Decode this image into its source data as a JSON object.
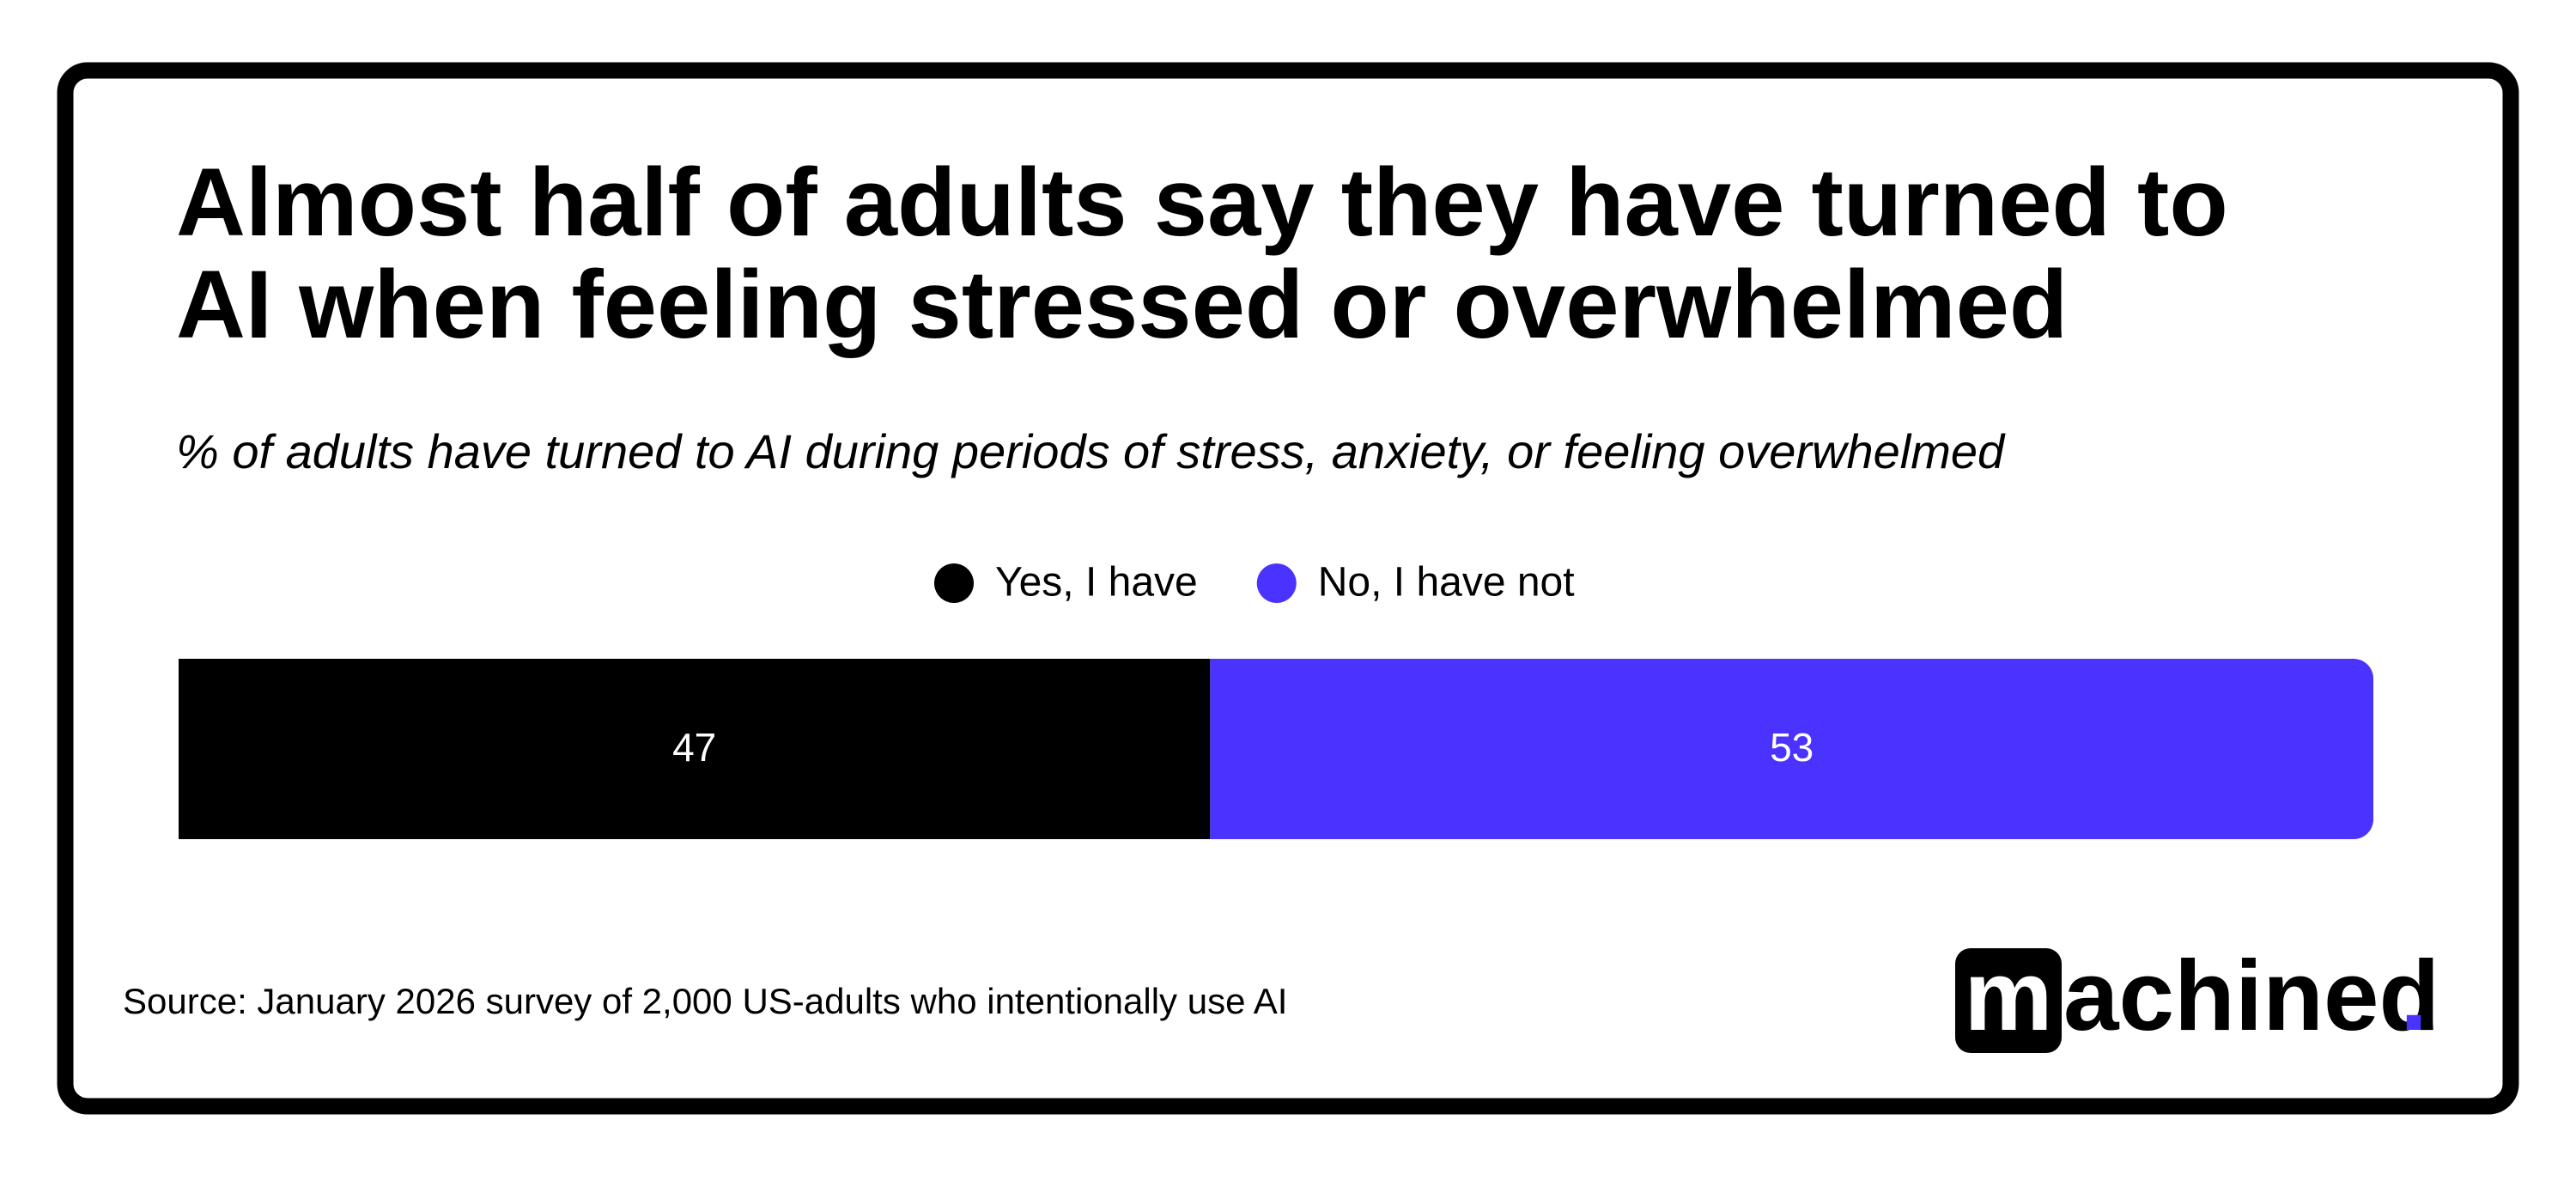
{
  "chart_data": {
    "type": "stacked-bar",
    "orientation": "horizontal",
    "title": [
      "Almost half of adults say they have turned to",
      "AI when feeling stressed or overwhelmed"
    ],
    "subtitle": "% of adults have turned to AI during periods of stress, anxiety, or feeling overwhelmed",
    "series": [
      {
        "name": "Yes, I have",
        "color": "#000000",
        "values": [
          47
        ]
      },
      {
        "name": "No, I have not",
        "color": "#4b33ff",
        "values": [
          53
        ]
      }
    ],
    "xlim": [
      0,
      100
    ],
    "legend": "top",
    "source": "Source:  January 2026 survey of 2,000 US-adults who intentionally use AI",
    "logo": {
      "boxed": "m",
      "rest": "achined",
      "dot": "."
    }
  }
}
